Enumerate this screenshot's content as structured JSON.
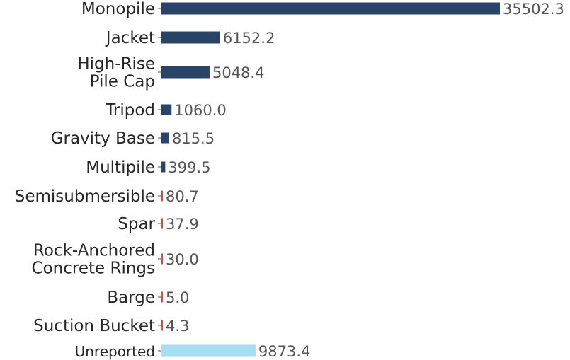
{
  "chart_data": {
    "type": "bar",
    "orientation": "horizontal",
    "title": "",
    "xlabel": "",
    "ylabel": "",
    "grid": false,
    "categories": [
      [
        "Monopile"
      ],
      [
        "Jacket"
      ],
      [
        "High-Rise",
        "Pile Cap"
      ],
      [
        "Tripod"
      ],
      [
        "Gravity Base"
      ],
      [
        "Multipile"
      ],
      [
        "Semisubmersible"
      ],
      [
        "Spar"
      ],
      [
        "Rock-Anchored",
        "Concrete Rings"
      ],
      [
        "Barge"
      ],
      [
        "Suction Bucket"
      ],
      [
        "Unreported"
      ]
    ],
    "values": [
      35502.3,
      6152.2,
      5048.4,
      1060.0,
      815.5,
      399.5,
      80.7,
      37.9,
      30.0,
      5.0,
      4.3,
      9873.4
    ],
    "value_labels": [
      "35502.3",
      "6152.2",
      "5048.4",
      "1060.0",
      "815.5",
      "399.5",
      "80.7",
      "37.9",
      "30.0",
      "5.0",
      "4.3",
      "9873.4"
    ],
    "bar_colors": [
      "#2a4467",
      "#2a4467",
      "#2a4467",
      "#2a4467",
      "#2a4467",
      "#2a4467",
      "#b85a4a",
      "#b85a4a",
      "#b85a4a",
      "#b85a4a",
      "#b85a4a",
      "#a8def2"
    ],
    "xlim": [
      0,
      36000
    ]
  }
}
